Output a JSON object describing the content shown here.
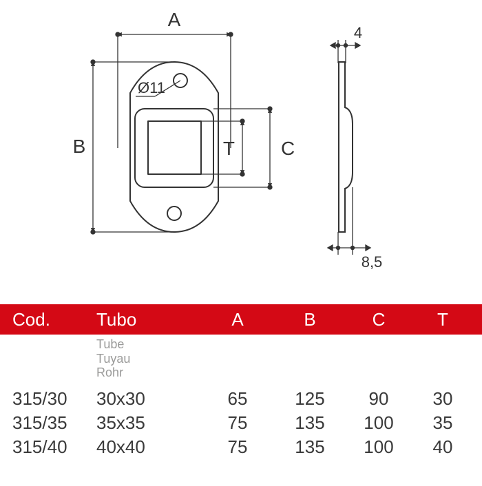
{
  "colors": {
    "red": "#d40915",
    "line": "#333333",
    "text": "#333333",
    "sub": "#9a9a99",
    "rowtext": "#3a3a3a",
    "white": "#ffffff"
  },
  "diagram": {
    "annotations": {
      "A": "A",
      "B": "B",
      "T": "T",
      "C": "C",
      "top_right": "4",
      "bottom_right": "8,5",
      "hole_diameter": "Ø11"
    },
    "stroke_width": 2,
    "stroke_width_dim": 1.3,
    "font_size_label": 28,
    "font_size_small": 22,
    "arrowhead_size": 5
  },
  "table": {
    "header": {
      "cod": "Cod.",
      "tubo": "Tubo",
      "A": "A",
      "B": "B",
      "C": "C",
      "T": "T"
    },
    "subheader": [
      "Tube",
      "Tuyau",
      "Rohr"
    ],
    "rows": [
      {
        "cod": "315/30",
        "tubo": "30x30",
        "A": "65",
        "B": "125",
        "C": "90",
        "T": "30"
      },
      {
        "cod": "315/35",
        "tubo": "35x35",
        "A": "75",
        "B": "135",
        "C": "100",
        "T": "35"
      },
      {
        "cod": "315/40",
        "tubo": "40x40",
        "A": "75",
        "B": "135",
        "C": "100",
        "T": "40"
      }
    ],
    "header_bg": "#d40915",
    "header_fg": "#ffffff",
    "font_size_header": 26,
    "font_size_sub": 18,
    "font_size_row": 26
  }
}
